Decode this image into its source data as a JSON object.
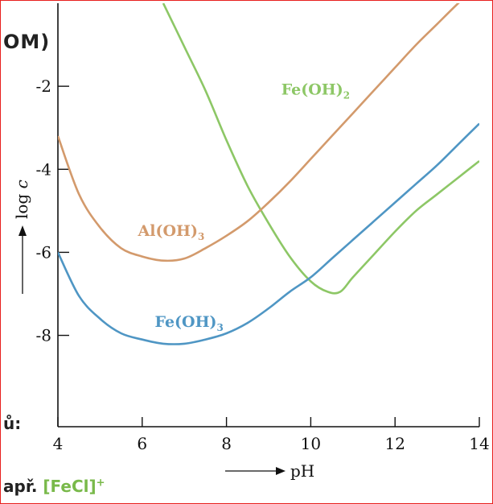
{
  "fragments": {
    "top": "OM)",
    "middle": "ů:",
    "bottom_prefix": "apř.",
    "bottom_formula": "[FeCl]",
    "bottom_charge": "+"
  },
  "chart_data": {
    "type": "line",
    "xlabel": "pH",
    "ylabel": "log c",
    "xlim": [
      4,
      14
    ],
    "ylim": [
      -10.2,
      0
    ],
    "xticks": [
      4,
      6,
      8,
      10,
      12,
      14
    ],
    "yticks": [
      -2,
      -4,
      -6,
      -8
    ],
    "grid": false,
    "colors": {
      "Fe(OH)2": "#8dc766",
      "Al(OH)3": "#d39a6c",
      "Fe(OH)3": "#4f96c4"
    },
    "series": [
      {
        "name": "Fe(OH)2",
        "label_main": "Fe(OH)",
        "label_sub": "2",
        "label_at": [
          9.3,
          -2.2
        ],
        "x": [
          6.5,
          7.0,
          7.5,
          8.0,
          8.5,
          9.0,
          9.5,
          10.0,
          10.4,
          10.7,
          11.0,
          11.5,
          12.0,
          12.5,
          13.0,
          13.5,
          14.0
        ],
        "y": [
          0.0,
          -1.05,
          -2.1,
          -3.3,
          -4.4,
          -5.3,
          -6.1,
          -6.7,
          -6.95,
          -6.95,
          -6.6,
          -6.05,
          -5.5,
          -5.0,
          -4.6,
          -4.2,
          -3.8
        ]
      },
      {
        "name": "Al(OH)3",
        "label_main": "Al(OH)",
        "label_sub": "3",
        "label_at": [
          5.9,
          -5.6
        ],
        "x": [
          4.0,
          4.5,
          5.0,
          5.5,
          6.0,
          6.5,
          7.0,
          7.5,
          8.0,
          8.5,
          9.0,
          9.5,
          10.0,
          10.5,
          11.0,
          11.5,
          12.0,
          12.5,
          13.0,
          13.5,
          14.0
        ],
        "y": [
          -3.2,
          -4.6,
          -5.4,
          -5.9,
          -6.1,
          -6.2,
          -6.15,
          -5.9,
          -5.6,
          -5.25,
          -4.8,
          -4.3,
          -3.75,
          -3.2,
          -2.65,
          -2.1,
          -1.55,
          -1.0,
          -0.5,
          0.0,
          0.45
        ]
      },
      {
        "name": "Fe(OH)3",
        "label_main": "Fe(OH)",
        "label_sub": "3",
        "label_at": [
          6.3,
          -7.8
        ],
        "x": [
          4.0,
          4.5,
          5.0,
          5.5,
          6.0,
          6.5,
          7.0,
          7.5,
          8.0,
          8.5,
          9.0,
          9.5,
          10.0,
          10.5,
          11.0,
          11.5,
          12.0,
          12.5,
          13.0,
          13.5,
          14.0
        ],
        "y": [
          -6.0,
          -7.05,
          -7.6,
          -7.95,
          -8.1,
          -8.2,
          -8.2,
          -8.1,
          -7.95,
          -7.7,
          -7.35,
          -6.95,
          -6.6,
          -6.15,
          -5.7,
          -5.25,
          -4.8,
          -4.35,
          -3.9,
          -3.4,
          -2.9
        ]
      }
    ]
  }
}
